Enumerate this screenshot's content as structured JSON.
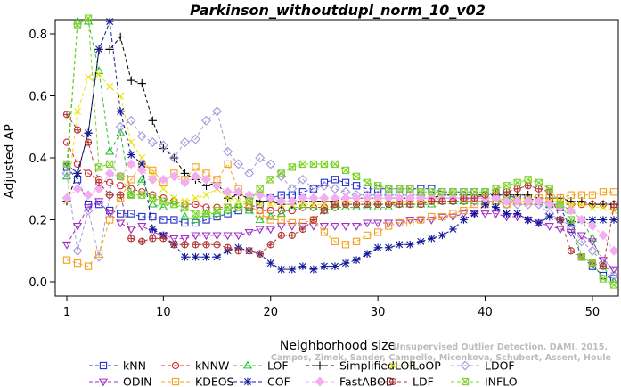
{
  "chart_data": {
    "type": "line",
    "title": "Parkinson_withoutdupl_norm_10_v02",
    "xlabel": "Neighborhood size",
    "ylabel": "Adjusted AP",
    "xlim": [
      1,
      52
    ],
    "ylim": [
      0.0,
      0.85
    ],
    "xticks": [
      1,
      10,
      20,
      30,
      40,
      50
    ],
    "yticks": [
      0.0,
      0.2,
      0.4,
      0.6,
      0.8
    ],
    "grid": false,
    "legend_position": "bottom",
    "credit": "Campos, Zimek, Sander, Campello, Micenkova, Schubert, Assent, Houle",
    "credit_line2": "Unsupervised Outlier Detection. DAMI, 2015.",
    "x": [
      1,
      2,
      3,
      4,
      5,
      6,
      7,
      8,
      9,
      10,
      11,
      12,
      13,
      14,
      15,
      16,
      17,
      18,
      19,
      20,
      21,
      22,
      23,
      24,
      25,
      26,
      27,
      28,
      29,
      30,
      31,
      32,
      33,
      34,
      35,
      36,
      37,
      38,
      39,
      40,
      41,
      42,
      43,
      44,
      45,
      46,
      47,
      48,
      49,
      50,
      51,
      52
    ],
    "series": [
      {
        "name": "kNN",
        "color": "#1f2fd1",
        "marker": "square",
        "values": [
          0.37,
          0.33,
          0.25,
          0.25,
          0.23,
          0.22,
          0.22,
          0.21,
          0.21,
          0.2,
          0.2,
          0.19,
          0.19,
          0.2,
          0.21,
          0.22,
          0.23,
          0.24,
          0.25,
          0.27,
          0.28,
          0.28,
          0.29,
          0.3,
          0.32,
          0.33,
          0.32,
          0.31,
          0.3,
          0.3,
          0.3,
          0.3,
          0.3,
          0.3,
          0.3,
          0.29,
          0.29,
          0.29,
          0.29,
          0.29,
          0.28,
          0.28,
          0.27,
          0.27,
          0.26,
          0.25,
          0.24,
          0.17,
          0.08,
          0.05,
          0.02,
          0.01
        ]
      },
      {
        "name": "kNNW",
        "color": "#d42a2a",
        "marker": "circle",
        "values": [
          0.45,
          0.38,
          0.35,
          0.33,
          0.32,
          0.31,
          0.3,
          0.29,
          0.28,
          0.27,
          0.26,
          0.25,
          0.25,
          0.24,
          0.24,
          0.24,
          0.24,
          0.24,
          0.23,
          0.23,
          0.23,
          0.23,
          0.24,
          0.24,
          0.24,
          0.24,
          0.25,
          0.25,
          0.25,
          0.25,
          0.25,
          0.26,
          0.26,
          0.26,
          0.26,
          0.26,
          0.26,
          0.26,
          0.26,
          0.26,
          0.26,
          0.26,
          0.26,
          0.26,
          0.26,
          0.25,
          0.25,
          0.25,
          0.25,
          0.25,
          0.25,
          0.25
        ]
      },
      {
        "name": "LOF",
        "color": "#27c22a",
        "marker": "triangle",
        "values": [
          0.34,
          0.84,
          0.84,
          0.68,
          0.42,
          0.48,
          0.28,
          0.33,
          0.25,
          0.24,
          0.26,
          0.21,
          0.2,
          0.22,
          0.22,
          0.23,
          0.25,
          0.23,
          0.2,
          0.21,
          0.22,
          0.24,
          0.24,
          0.24,
          0.23,
          0.24,
          0.24,
          0.24,
          0.24,
          0.24,
          0.24,
          0.25,
          0.25,
          0.25,
          0.25,
          0.26,
          0.26,
          0.26,
          0.26,
          0.26,
          0.26,
          0.27,
          0.26,
          0.26,
          0.26,
          0.25,
          0.25,
          0.23,
          0.2,
          0.14,
          0.05,
          0.0
        ]
      },
      {
        "name": "SimplifiedLOF",
        "color": "#000000",
        "marker": "plus",
        "values": [
          0.26,
          0.35,
          0.48,
          0.75,
          0.75,
          0.79,
          0.65,
          0.64,
          0.52,
          0.43,
          0.4,
          0.35,
          0.33,
          0.31,
          0.32,
          0.27,
          0.28,
          0.27,
          0.26,
          0.26,
          0.25,
          0.25,
          0.26,
          0.26,
          0.26,
          0.26,
          0.27,
          0.27,
          0.27,
          0.27,
          0.27,
          0.27,
          0.27,
          0.27,
          0.27,
          0.28,
          0.28,
          0.28,
          0.28,
          0.28,
          0.28,
          0.28,
          0.28,
          0.28,
          0.27,
          0.27,
          0.27,
          0.26,
          0.26,
          0.25,
          0.25,
          0.25
        ]
      },
      {
        "name": "LoOP",
        "color": "#e8e30a",
        "marker": "cross",
        "values": [
          0.26,
          0.55,
          0.66,
          0.67,
          0.63,
          0.6,
          0.45,
          0.4,
          0.35,
          0.3,
          0.27,
          0.26,
          0.27,
          0.28,
          0.3,
          0.27,
          0.26,
          0.26,
          0.25,
          0.25,
          0.25,
          0.25,
          0.25,
          0.25,
          0.25,
          0.26,
          0.26,
          0.26,
          0.26,
          0.26,
          0.26,
          0.26,
          0.26,
          0.26,
          0.26,
          0.27,
          0.27,
          0.27,
          0.27,
          0.27,
          0.27,
          0.27,
          0.27,
          0.27,
          0.26,
          0.26,
          0.26,
          0.25,
          0.25,
          0.24,
          0.24,
          0.23
        ]
      },
      {
        "name": "LDOF",
        "color": "#a49ad6",
        "marker": "diamond",
        "values": [
          0.35,
          0.1,
          0.23,
          0.08,
          0.28,
          0.5,
          0.52,
          0.47,
          0.45,
          0.44,
          0.4,
          0.45,
          0.46,
          0.52,
          0.55,
          0.42,
          0.38,
          0.35,
          0.4,
          0.38,
          0.34,
          0.3,
          0.33,
          0.3,
          0.31,
          0.3,
          0.29,
          0.28,
          0.28,
          0.28,
          0.28,
          0.28,
          0.28,
          0.28,
          0.27,
          0.27,
          0.27,
          0.27,
          0.26,
          0.26,
          0.26,
          0.25,
          0.25,
          0.25,
          0.25,
          0.22,
          0.2,
          0.18,
          0.13,
          0.1,
          0.06,
          0.02
        ]
      },
      {
        "name": "ODIN",
        "color": "#a22fc7",
        "marker": "triangle-down",
        "values": [
          0.12,
          0.18,
          0.24,
          0.26,
          0.22,
          0.19,
          0.17,
          0.18,
          0.16,
          0.15,
          0.14,
          0.14,
          0.15,
          0.15,
          0.15,
          0.15,
          0.15,
          0.16,
          0.17,
          0.17,
          0.18,
          0.18,
          0.18,
          0.18,
          0.18,
          0.18,
          0.18,
          0.18,
          0.19,
          0.19,
          0.19,
          0.19,
          0.2,
          0.2,
          0.2,
          0.21,
          0.21,
          0.22,
          0.22,
          0.22,
          0.22,
          0.21,
          0.21,
          0.2,
          0.19,
          0.18,
          0.17,
          0.16,
          0.15,
          0.13,
          0.07,
          0.04
        ]
      },
      {
        "name": "KDEOS",
        "color": "#f3a21f",
        "marker": "square",
        "values": [
          0.07,
          0.06,
          0.05,
          0.09,
          0.2,
          0.27,
          0.33,
          0.38,
          0.36,
          0.32,
          0.35,
          0.33,
          0.37,
          0.35,
          0.33,
          0.38,
          0.3,
          0.25,
          0.22,
          0.2,
          0.2,
          0.19,
          0.19,
          0.2,
          0.16,
          0.13,
          0.12,
          0.13,
          0.15,
          0.16,
          0.18,
          0.19,
          0.19,
          0.2,
          0.21,
          0.21,
          0.22,
          0.23,
          0.25,
          0.25,
          0.26,
          0.25,
          0.26,
          0.26,
          0.27,
          0.27,
          0.27,
          0.28,
          0.28,
          0.28,
          0.29,
          0.29
        ]
      },
      {
        "name": "COF",
        "color": "#11189a",
        "marker": "asterisk",
        "values": [
          0.38,
          0.35,
          0.48,
          0.75,
          0.84,
          0.55,
          0.41,
          0.38,
          0.17,
          0.15,
          0.12,
          0.08,
          0.08,
          0.08,
          0.08,
          0.1,
          0.11,
          0.1,
          0.09,
          0.06,
          0.04,
          0.04,
          0.05,
          0.04,
          0.05,
          0.05,
          0.06,
          0.07,
          0.09,
          0.11,
          0.11,
          0.12,
          0.12,
          0.13,
          0.14,
          0.15,
          0.17,
          0.2,
          0.22,
          0.25,
          0.24,
          0.22,
          0.22,
          0.2,
          0.19,
          0.21,
          0.2,
          0.19,
          0.2,
          0.2,
          0.2,
          0.2
        ]
      },
      {
        "name": "FastABOD",
        "color": "#f2aef0",
        "marker": "diamond-filled",
        "values": [
          0.27,
          0.3,
          0.28,
          0.3,
          0.35,
          0.34,
          0.38,
          0.36,
          0.33,
          0.33,
          0.34,
          0.32,
          0.34,
          0.33,
          0.31,
          0.29,
          0.29,
          0.28,
          0.28,
          0.27,
          0.26,
          0.26,
          0.27,
          0.27,
          0.27,
          0.27,
          0.27,
          0.27,
          0.27,
          0.27,
          0.27,
          0.27,
          0.27,
          0.27,
          0.27,
          0.27,
          0.27,
          0.27,
          0.27,
          0.27,
          0.27,
          0.26,
          0.26,
          0.26,
          0.26,
          0.25,
          0.24,
          0.23,
          0.2,
          0.18,
          0.15,
          0.1
        ]
      },
      {
        "name": "LDF",
        "color": "#b23838",
        "marker": "circle-plus",
        "values": [
          0.54,
          0.49,
          0.45,
          0.32,
          0.28,
          0.28,
          0.14,
          0.13,
          0.14,
          0.14,
          0.12,
          0.12,
          0.12,
          0.12,
          0.12,
          0.11,
          0.1,
          0.1,
          0.09,
          0.12,
          0.15,
          0.15,
          0.17,
          0.2,
          0.23,
          0.25,
          0.25,
          0.25,
          0.25,
          0.25,
          0.25,
          0.25,
          0.25,
          0.25,
          0.26,
          0.26,
          0.26,
          0.27,
          0.27,
          0.28,
          0.29,
          0.29,
          0.3,
          0.31,
          0.3,
          0.29,
          0.2,
          0.1,
          0.08,
          0.06,
          0.05,
          0.24
        ]
      },
      {
        "name": "INFLO",
        "color": "#7dd327",
        "marker": "cross-square",
        "values": [
          0.38,
          0.83,
          0.85,
          0.37,
          0.38,
          0.34,
          0.28,
          0.28,
          0.27,
          0.26,
          0.25,
          0.24,
          0.22,
          0.22,
          0.23,
          0.24,
          0.24,
          0.26,
          0.3,
          0.33,
          0.35,
          0.37,
          0.38,
          0.38,
          0.38,
          0.38,
          0.36,
          0.34,
          0.32,
          0.31,
          0.3,
          0.3,
          0.3,
          0.29,
          0.29,
          0.29,
          0.29,
          0.29,
          0.29,
          0.29,
          0.3,
          0.31,
          0.32,
          0.33,
          0.32,
          0.3,
          0.25,
          0.2,
          0.08,
          0.06,
          0.01,
          -0.01
        ]
      }
    ]
  }
}
